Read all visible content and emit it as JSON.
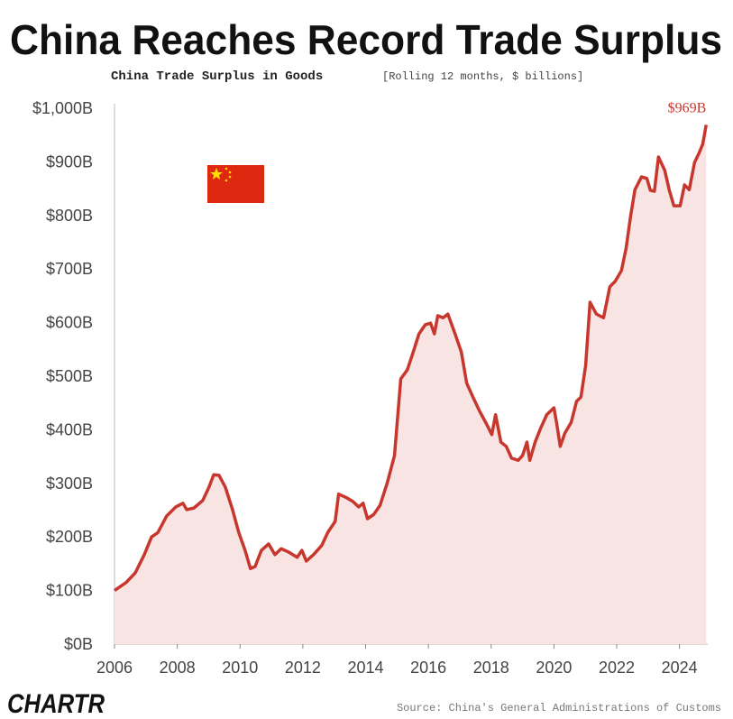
{
  "chart_data": {
    "type": "area",
    "title": "China Reaches Record Trade Surplus",
    "subtitle": "China Trade Surplus in Goods",
    "subtitle_note": "[Rolling 12 months, $ billions]",
    "source": "Source: China's General Administrations of Customs",
    "brand": "CHARTR",
    "color": "#c8372d",
    "fill": "#f9e4e4",
    "xlim": [
      2006,
      2024.9
    ],
    "xticks": [
      2006,
      2008,
      2010,
      2012,
      2014,
      2016,
      2018,
      2020,
      2022,
      2024
    ],
    "ylim": [
      0,
      1000
    ],
    "yticks": [
      {
        "value": 0,
        "label": "$0B"
      },
      {
        "value": 100,
        "label": "$100B"
      },
      {
        "value": 200,
        "label": "$200B"
      },
      {
        "value": 300,
        "label": "$300B"
      },
      {
        "value": 400,
        "label": "$400B"
      },
      {
        "value": 500,
        "label": "$500B"
      },
      {
        "value": 600,
        "label": "$600B"
      },
      {
        "value": 700,
        "label": "$700B"
      },
      {
        "value": 800,
        "label": "$800B"
      },
      {
        "value": 900,
        "label": "$900B"
      },
      {
        "value": 1000,
        "label": "$1,000B"
      }
    ],
    "x": [
      2006.0,
      2006.37,
      2006.66,
      2006.95,
      2007.18,
      2007.38,
      2007.66,
      2007.95,
      2008.18,
      2008.3,
      2008.53,
      2008.81,
      2009.01,
      2009.16,
      2009.33,
      2009.53,
      2009.76,
      2009.96,
      2010.16,
      2010.33,
      2010.48,
      2010.68,
      2010.91,
      2011.11,
      2011.31,
      2011.54,
      2011.82,
      2011.97,
      2012.11,
      2012.34,
      2012.6,
      2012.8,
      2013.03,
      2013.14,
      2013.4,
      2013.6,
      2013.78,
      2013.92,
      2014.06,
      2014.26,
      2014.46,
      2014.69,
      2014.92,
      2015.12,
      2015.33,
      2015.5,
      2015.7,
      2015.9,
      2016.07,
      2016.19,
      2016.3,
      2016.47,
      2016.62,
      2016.85,
      2017.05,
      2017.22,
      2017.42,
      2017.62,
      2017.85,
      2018.02,
      2018.14,
      2018.31,
      2018.48,
      2018.65,
      2018.86,
      2019.0,
      2019.14,
      2019.23,
      2019.4,
      2019.57,
      2019.77,
      2020.0,
      2020.09,
      2020.2,
      2020.35,
      2020.55,
      2020.72,
      2020.86,
      2021.01,
      2021.15,
      2021.35,
      2021.58,
      2021.78,
      2021.95,
      2022.15,
      2022.3,
      2022.44,
      2022.58,
      2022.79,
      2022.96,
      2023.07,
      2023.2,
      2023.33,
      2023.53,
      2023.67,
      2023.82,
      2024.02,
      2024.16,
      2024.31,
      2024.48,
      2024.62,
      2024.74,
      2024.85
    ],
    "values": [
      100,
      115,
      133,
      167,
      200,
      208,
      239,
      256,
      263,
      251,
      254,
      268,
      293,
      316,
      315,
      293,
      251,
      208,
      175,
      141,
      145,
      175,
      187,
      167,
      178,
      172,
      162,
      175,
      155,
      167,
      184,
      209,
      229,
      280,
      273,
      266,
      256,
      263,
      234,
      242,
      259,
      301,
      352,
      495,
      512,
      542,
      579,
      596,
      599,
      579,
      613,
      609,
      616,
      579,
      545,
      487,
      461,
      436,
      411,
      391,
      428,
      377,
      369,
      347,
      343,
      352,
      377,
      343,
      377,
      402,
      428,
      441,
      411,
      369,
      394,
      414,
      453,
      461,
      520,
      638,
      616,
      609,
      667,
      677,
      697,
      739,
      798,
      848,
      872,
      869,
      847,
      845,
      909,
      884,
      848,
      818,
      818,
      857,
      848,
      899,
      916,
      933,
      969
    ],
    "value_labels": [
      null,
      null,
      null,
      null,
      null,
      null,
      null,
      null,
      null,
      null,
      null,
      null,
      null,
      null,
      null,
      null,
      null,
      null,
      null,
      null,
      null,
      null,
      null,
      null,
      null,
      null,
      null,
      null,
      null,
      null,
      null,
      null,
      null,
      null,
      null,
      null,
      null,
      null,
      null,
      null,
      null,
      null,
      null,
      null,
      null,
      null,
      null,
      null,
      null,
      null,
      null,
      null,
      null,
      null,
      null,
      null,
      null,
      null,
      null,
      null,
      null,
      null,
      null,
      null,
      null,
      null,
      null,
      null,
      null,
      null,
      null,
      null,
      null,
      null,
      null,
      null,
      null,
      null,
      null,
      null,
      null,
      null,
      null,
      null,
      null,
      null,
      null,
      null,
      null,
      null,
      null,
      null,
      null,
      null,
      null,
      null,
      null,
      null,
      null,
      null,
      null,
      null,
      "$969B"
    ]
  }
}
